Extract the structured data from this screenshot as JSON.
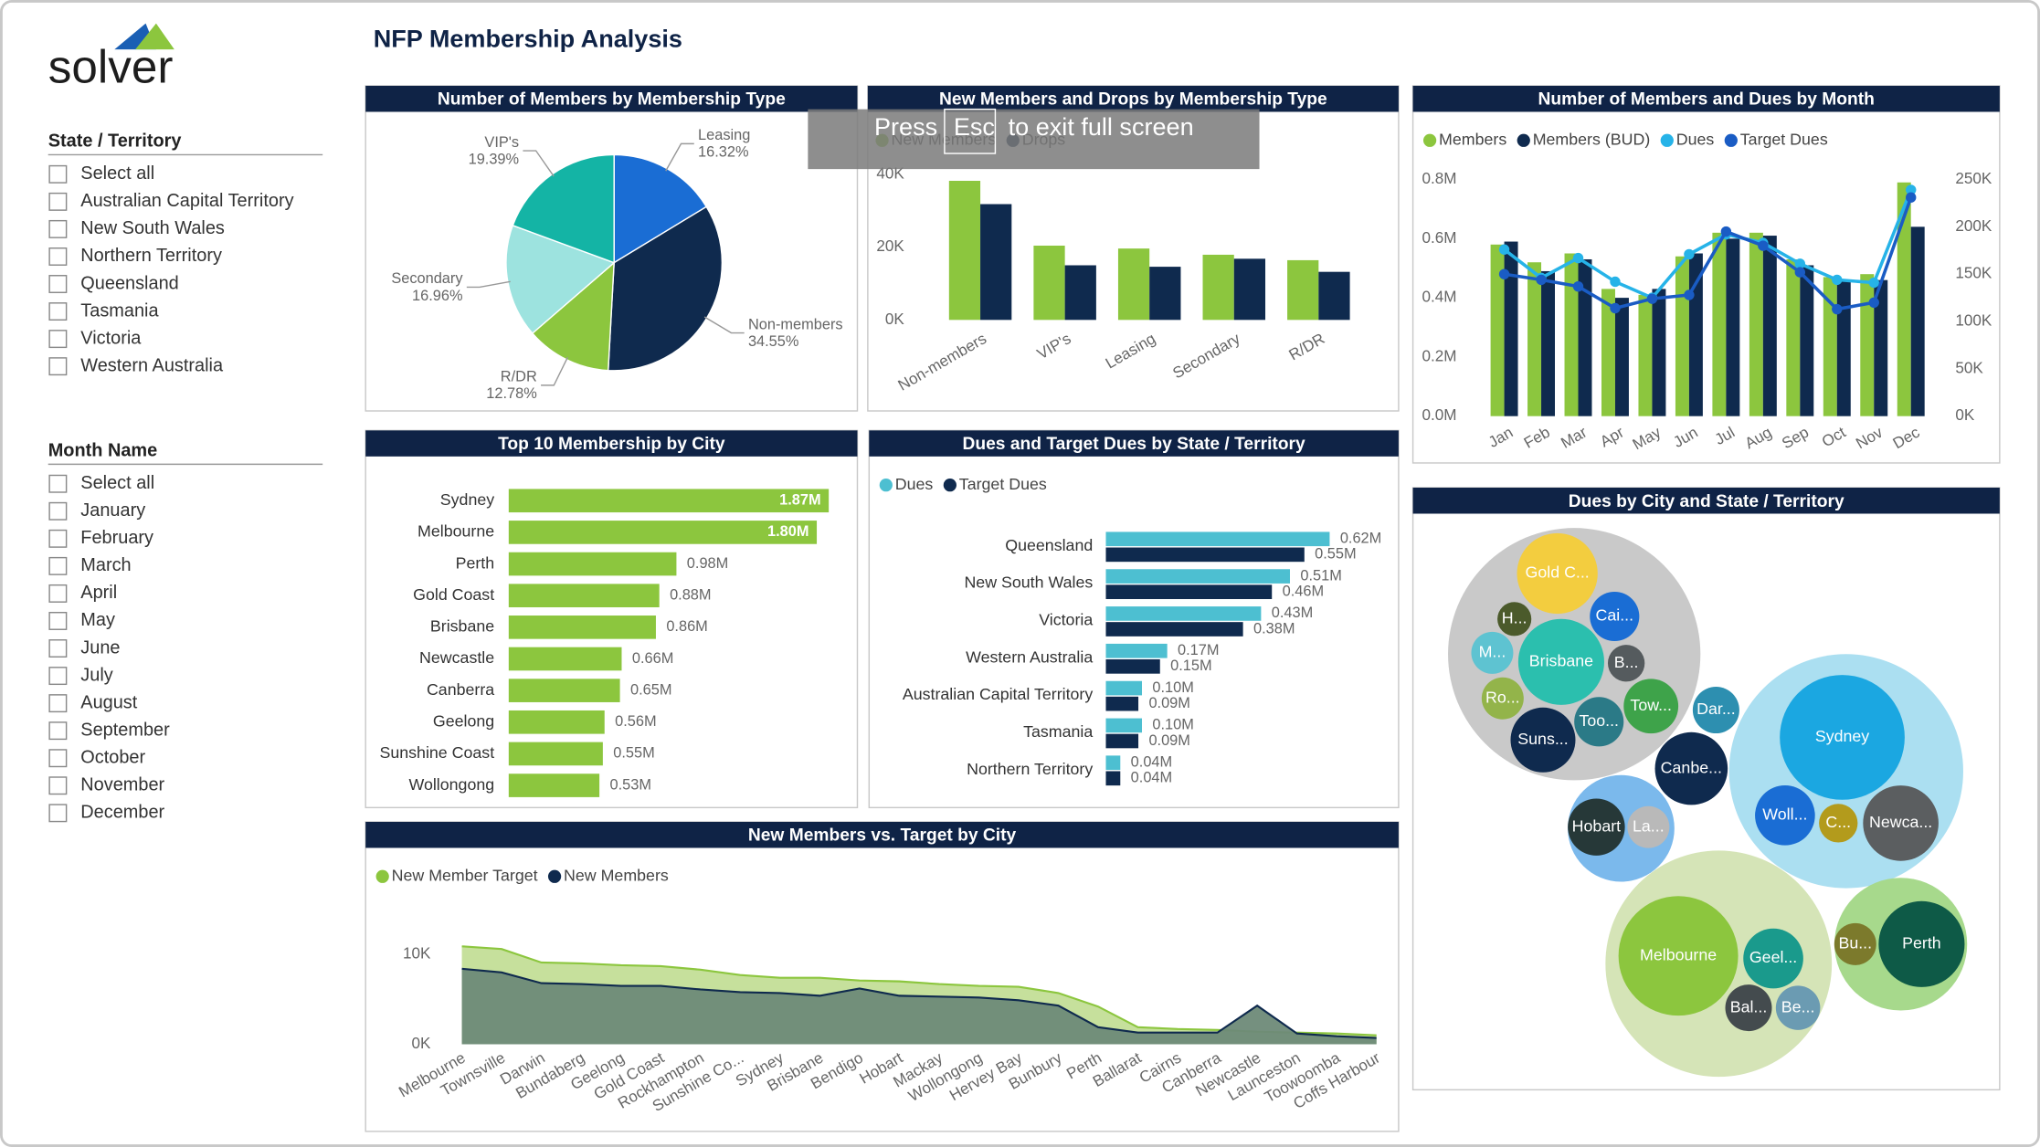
{
  "header": {
    "logo": "solver",
    "title": "NFP Membership Analysis"
  },
  "slicers": [
    {
      "title": "State / Territory",
      "items": [
        "Select all",
        "Australian Capital Territory",
        "New South Wales",
        "Northern Territory",
        "Queensland",
        "Tasmania",
        "Victoria",
        "Western Australia"
      ]
    },
    {
      "title": "Month Name",
      "items": [
        "Select all",
        "January",
        "February",
        "March",
        "April",
        "May",
        "June",
        "July",
        "August",
        "September",
        "October",
        "November",
        "December"
      ]
    }
  ],
  "overlay": {
    "before": "Press",
    "key": "Esc",
    "after": "to exit full screen"
  },
  "chart_data": [
    {
      "type": "pie",
      "title": "Number of Members by Membership Type",
      "categories": [
        "Leasing",
        "Non-members",
        "R/DR",
        "Secondary",
        "VIP's"
      ],
      "values": [
        16.32,
        34.55,
        12.78,
        16.96,
        19.39
      ],
      "value_labels": [
        "16.32%",
        "34.55%",
        "12.78%",
        "16.96%",
        "19.39%"
      ],
      "colors": [
        "#1a6dd4",
        "#0f2a4e",
        "#8cc63e",
        "#9de3df",
        "#14b4a5"
      ]
    },
    {
      "type": "bar",
      "title": "New Members and Drops by Membership Type",
      "categories": [
        "Non-members",
        "VIP's",
        "Leasing",
        "Secondary",
        "R/DR"
      ],
      "series": [
        {
          "name": "New Members",
          "color": "#8cc63e",
          "values": [
            38200,
            20400,
            19600,
            17900,
            16400
          ]
        },
        {
          "name": "Drops",
          "color": "#0f2a4e",
          "values": [
            31800,
            15000,
            14600,
            16800,
            13200
          ]
        }
      ],
      "ylim": [
        0,
        40000
      ],
      "yticks": [
        {
          "value": 0,
          "label": "0K"
        },
        {
          "value": 20000,
          "label": "20K"
        },
        {
          "value": 40000,
          "label": "40K"
        }
      ]
    },
    {
      "type": "combo",
      "title": "Number of Members and Dues by Month",
      "categories": [
        "Jan",
        "Feb",
        "Mar",
        "Apr",
        "May",
        "Jun",
        "Jul",
        "Aug",
        "Sep",
        "Oct",
        "Nov",
        "Dec"
      ],
      "series": [
        {
          "name": "Members",
          "color": "#8cc63e",
          "kind": "bar",
          "values": [
            580000,
            520000,
            550000,
            430000,
            410000,
            540000,
            620000,
            620000,
            530000,
            470000,
            480000,
            790000
          ]
        },
        {
          "name": "Members (BUD)",
          "color": "#0f2a4e",
          "kind": "bar",
          "values": [
            590000,
            490000,
            530000,
            400000,
            430000,
            550000,
            600000,
            610000,
            510000,
            460000,
            460000,
            640000
          ]
        },
        {
          "name": "Dues",
          "color": "#26b3e8",
          "kind": "line",
          "axis": "y2",
          "values": [
            176000,
            146000,
            167000,
            142000,
            125000,
            171000,
            192000,
            183000,
            161000,
            144000,
            141000,
            239000
          ]
        },
        {
          "name": "Target Dues",
          "color": "#1a5cc4",
          "kind": "line",
          "axis": "y2",
          "values": [
            150000,
            144000,
            137000,
            114000,
            124000,
            128000,
            195000,
            180000,
            152000,
            113000,
            120000,
            231000
          ]
        }
      ],
      "ylim": [
        0,
        800000
      ],
      "yticks": [
        {
          "value": 0,
          "label": "0.0M"
        },
        {
          "value": 200000,
          "label": "0.2M"
        },
        {
          "value": 400000,
          "label": "0.4M"
        },
        {
          "value": 600000,
          "label": "0.6M"
        },
        {
          "value": 800000,
          "label": "0.8M"
        }
      ],
      "y2lim": [
        0,
        250000
      ],
      "y2ticks": [
        {
          "value": 0,
          "label": "0K"
        },
        {
          "value": 50000,
          "label": "50K"
        },
        {
          "value": 100000,
          "label": "100K"
        },
        {
          "value": 150000,
          "label": "150K"
        },
        {
          "value": 200000,
          "label": "200K"
        },
        {
          "value": 250000,
          "label": "250K"
        }
      ]
    },
    {
      "type": "hbar",
      "title": "Top 10 Membership by City",
      "categories": [
        "Sydney",
        "Melbourne",
        "Perth",
        "Gold Coast",
        "Brisbane",
        "Newcastle",
        "Canberra",
        "Geelong",
        "Sunshine Coast",
        "Wollongong"
      ],
      "values": [
        1870000,
        1800000,
        980000,
        880000,
        860000,
        660000,
        650000,
        560000,
        550000,
        530000
      ],
      "value_labels": [
        "1.87M",
        "1.80M",
        "0.98M",
        "0.88M",
        "0.86M",
        "0.66M",
        "0.65M",
        "0.56M",
        "0.55M",
        "0.53M"
      ],
      "color": "#8cc63e"
    },
    {
      "type": "hbar",
      "title": "Dues and Target Dues by State / Territory",
      "categories": [
        "Queensland",
        "New South Wales",
        "Victoria",
        "Western Australia",
        "Australian Capital Territory",
        "Tasmania",
        "Northern Territory"
      ],
      "series": [
        {
          "name": "Dues",
          "color": "#4dbfd1",
          "values": [
            620000,
            510000,
            430000,
            170000,
            100000,
            100000,
            40000
          ],
          "value_labels": [
            "0.62M",
            "0.51M",
            "0.43M",
            "0.17M",
            "0.10M",
            "0.10M",
            "0.04M"
          ]
        },
        {
          "name": "Target Dues",
          "color": "#0f2a4e",
          "values": [
            550000,
            460000,
            380000,
            150000,
            90000,
            90000,
            40000
          ],
          "value_labels": [
            "0.55M",
            "0.46M",
            "0.38M",
            "0.15M",
            "0.09M",
            "0.09M",
            "0.04M"
          ]
        }
      ]
    },
    {
      "type": "area",
      "title": "New Members vs. Target by City",
      "categories": [
        "Melbourne",
        "Townsville",
        "Darwin",
        "Bundaberg",
        "Geelong",
        "Gold Coast",
        "Rockhampton",
        "Sunshine Co...",
        "Sydney",
        "Brisbane",
        "Bendigo",
        "Hobart",
        "Mackay",
        "Wollongong",
        "Hervey Bay",
        "Bunbury",
        "Perth",
        "Ballarat",
        "Cairns",
        "Canberra",
        "Newcastle",
        "Launceston",
        "Toowoomba",
        "Coffs Harbour"
      ],
      "series": [
        {
          "name": "New Member Target",
          "color": "#8cc63e",
          "fill": "#c6e09c",
          "values": [
            10900,
            10600,
            9100,
            9000,
            8800,
            8700,
            8300,
            7700,
            7400,
            7400,
            7100,
            7000,
            6700,
            6500,
            6400,
            5700,
            4200,
            1900,
            1700,
            1600,
            1400,
            1300,
            1200,
            1000
          ]
        },
        {
          "name": "New Members",
          "color": "#0f2a4e",
          "fill": "#6e8a78",
          "values": [
            8400,
            8000,
            6800,
            6700,
            6500,
            6500,
            6100,
            5800,
            5700,
            5400,
            6200,
            5400,
            5300,
            5200,
            4900,
            4300,
            1900,
            1300,
            1300,
            1300,
            4300,
            1200,
            900,
            700
          ]
        }
      ],
      "ylim": [
        0,
        11000
      ],
      "yticks": [
        {
          "value": 0,
          "label": "0K"
        },
        {
          "value": 10000,
          "label": "10K"
        }
      ]
    },
    {
      "type": "bubble",
      "title": "Dues by City and State / Territory",
      "groups": [
        {
          "color": "#c9c9c9",
          "children": [
            {
              "label": "Gold C...",
              "value": 96,
              "color": "#f3cd3f"
            },
            {
              "label": "H...",
              "value": 17,
              "color": "#4b5a2b"
            },
            {
              "label": "Cai...",
              "value": 36,
              "color": "#1a6dd4"
            },
            {
              "label": "M...",
              "value": 26,
              "color": "#5ec3d1"
            },
            {
              "label": "Brisbane",
              "value": 109,
              "color": "#2bbfae"
            },
            {
              "label": "B...",
              "value": 20,
              "color": "#555b5e"
            },
            {
              "label": "Ro...",
              "value": 26,
              "color": "#93b44a"
            },
            {
              "label": "Tow...",
              "value": 44,
              "color": "#3ea34a"
            },
            {
              "label": "Too...",
              "value": 36,
              "color": "#2b7a87"
            },
            {
              "label": "Suns...",
              "value": 62,
              "color": "#0f2a4e"
            }
          ]
        },
        {
          "color": "#abdff1",
          "children": [
            {
              "label": "Sydney",
              "value": 230,
              "color": "#1ba7e1"
            },
            {
              "label": "Woll...",
              "value": 53,
              "color": "#1a6dd4"
            },
            {
              "label": "C...",
              "value": 22,
              "color": "#b39b1c"
            },
            {
              "label": "Newca...",
              "value": 84,
              "color": "#5b5e60"
            }
          ]
        },
        {
          "color": "#d5e4b7",
          "children": [
            {
              "label": "Melbourne",
              "value": 211,
              "color": "#8cc63e"
            },
            {
              "label": "Geel...",
              "value": 53,
              "color": "#1a9a8c"
            },
            {
              "label": "Bal...",
              "value": 32,
              "color": "#444b4e"
            },
            {
              "label": "Be...",
              "value": 29,
              "color": "#6b9bb2"
            }
          ]
        },
        {
          "color": "#a7d98c",
          "children": [
            {
              "label": "Perth",
              "value": 109,
              "color": "#0e5a47"
            },
            {
              "label": "Bu...",
              "value": 26,
              "color": "#7c7a2c"
            }
          ]
        },
        {
          "color": "#7bb9ec",
          "children": [
            {
              "label": "Hobart",
              "value": 48,
              "color": "#263838"
            },
            {
              "label": "La...",
              "value": 26,
              "color": "#b9b9b9"
            }
          ]
        },
        {
          "children": [
            {
              "label": "Dar...",
              "value": 32,
              "color": "#2d8fb0"
            }
          ]
        },
        {
          "children": [
            {
              "label": "Canbe...",
              "value": 78,
              "color": "#0f2a4e"
            }
          ]
        }
      ]
    }
  ]
}
